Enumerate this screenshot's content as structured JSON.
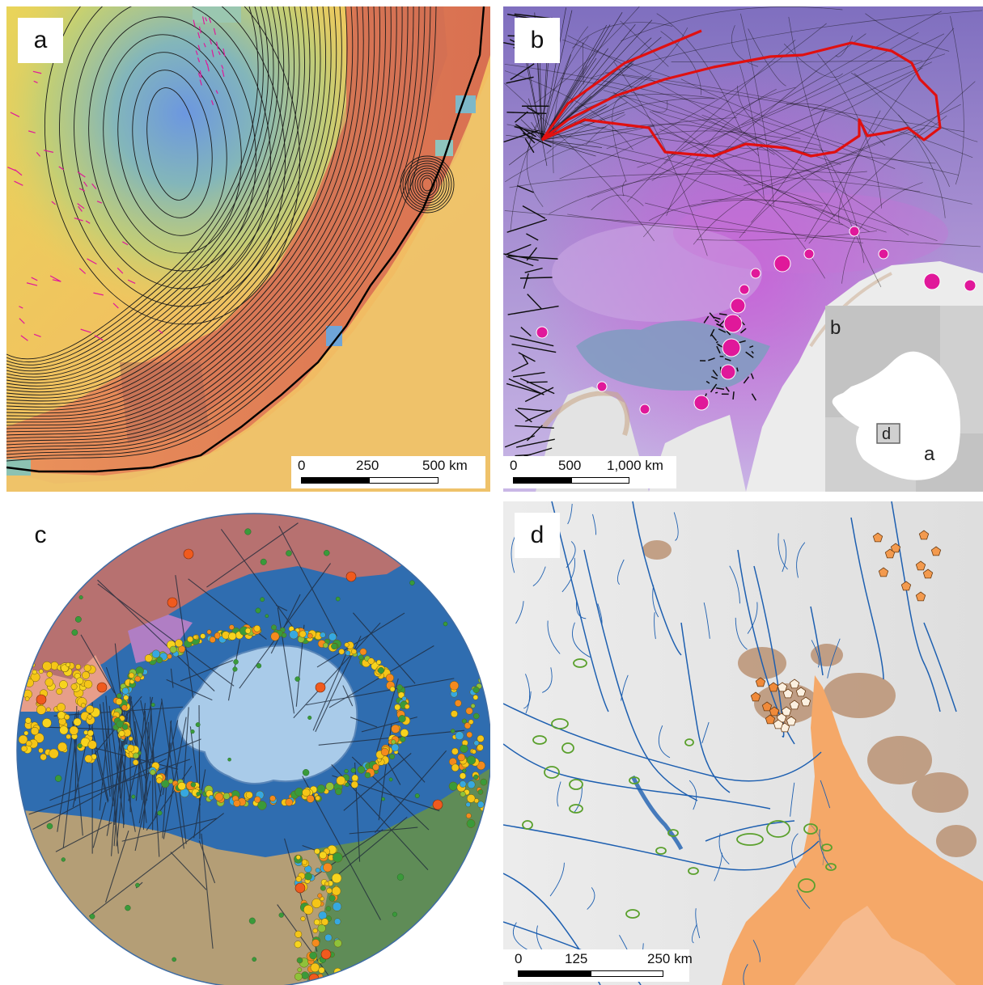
{
  "panels": {
    "a": {
      "label": "a",
      "scale": {
        "t0": "0",
        "t1": "250",
        "t2": "500 km"
      }
    },
    "b": {
      "label": "b",
      "scale": {
        "t0": "0",
        "t1": "500",
        "t2": "1,000 km"
      },
      "inset": {
        "b": "b",
        "d": "d",
        "a": "a"
      }
    },
    "c": {
      "label": "c"
    },
    "d": {
      "label": "d",
      "scale": {
        "t0": "0",
        "t1": "125",
        "t2": "250 km"
      }
    }
  },
  "colors": {
    "contour": "#1a1a1a",
    "magenta": "#e0189a",
    "route": "#e01010",
    "ocean_blue": "#3f7fc4",
    "ice": "#eaeaea",
    "ice_shelf_orange": "#f5a868",
    "stream_blue": "#1d5fb0",
    "lake_green": "#5aa02c"
  }
}
